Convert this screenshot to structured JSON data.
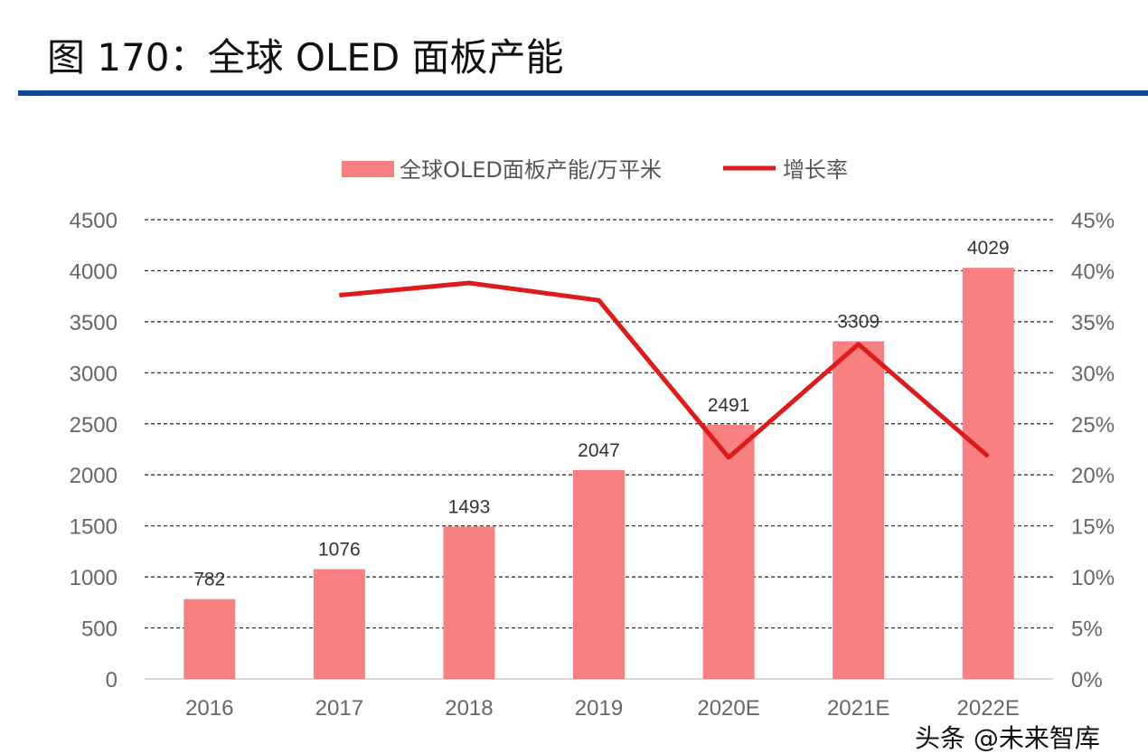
{
  "header": {
    "title": "图 170：全球 OLED 面板产能"
  },
  "watermark": "头条 @未来智库",
  "colors": {
    "bar": "#f88080",
    "line": "#e0191b",
    "rule": "#0b4a96"
  },
  "chart_data": {
    "type": "bar+line",
    "categories": [
      "2016",
      "2017",
      "2018",
      "2019",
      "2020E",
      "2021E",
      "2022E"
    ],
    "series": [
      {
        "name": "全球OLED面板产能/万平米",
        "type": "bar",
        "axis": "left",
        "values": [
          782,
          1076,
          1493,
          2047,
          2491,
          3309,
          4029
        ],
        "data_labels": [
          "782",
          "1076",
          "1493",
          "2047",
          "2491",
          "3309",
          "4029"
        ]
      },
      {
        "name": "增长率",
        "type": "line",
        "axis": "right",
        "values": [
          null,
          37.6,
          38.8,
          37.1,
          21.7,
          32.8,
          21.8
        ]
      }
    ],
    "y_left": {
      "range": [
        0,
        4500
      ],
      "ticks": [
        "0",
        "500",
        "1000",
        "1500",
        "2000",
        "2500",
        "3000",
        "3500",
        "4000",
        "4500"
      ]
    },
    "y_right": {
      "range": [
        0,
        45
      ],
      "unit": "%",
      "ticks": [
        "0%",
        "5%",
        "10%",
        "15%",
        "20%",
        "25%",
        "30%",
        "35%",
        "40%",
        "45%"
      ]
    },
    "grid": "horizontal dashed",
    "legend": "top"
  }
}
